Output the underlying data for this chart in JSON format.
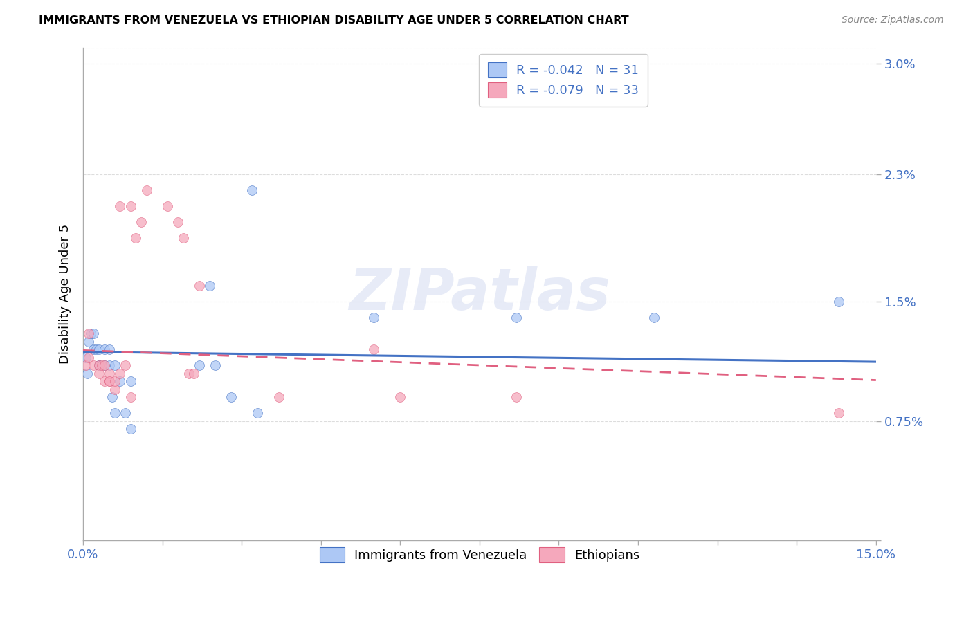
{
  "title": "IMMIGRANTS FROM VENEZUELA VS ETHIOPIAN DISABILITY AGE UNDER 5 CORRELATION CHART",
  "source": "Source: ZipAtlas.com",
  "ylabel": "Disability Age Under 5",
  "legend_label1": "Immigrants from Venezuela",
  "legend_label2": "Ethiopians",
  "R1": "-0.042",
  "N1": "31",
  "R2": "-0.079",
  "N2": "33",
  "color_venezuela": "#adc8f5",
  "color_ethiopia": "#f5a8bc",
  "color_line_venezuela": "#4472c4",
  "color_line_ethiopia": "#e06080",
  "xlim": [
    0.0,
    0.15
  ],
  "ylim": [
    0.0,
    0.031
  ],
  "ytick_vals": [
    0.0,
    0.0075,
    0.015,
    0.023,
    0.03
  ],
  "ytick_labels": [
    "",
    "0.75%",
    "1.5%",
    "2.3%",
    "3.0%"
  ],
  "venezuela_x": [
    0.0005,
    0.0008,
    0.001,
    0.0015,
    0.002,
    0.002,
    0.0025,
    0.003,
    0.003,
    0.003,
    0.004,
    0.004,
    0.005,
    0.005,
    0.0055,
    0.006,
    0.006,
    0.007,
    0.008,
    0.009,
    0.009,
    0.022,
    0.024,
    0.025,
    0.028,
    0.032,
    0.033,
    0.055,
    0.082,
    0.108,
    0.143
  ],
  "venezuela_y": [
    0.0115,
    0.0105,
    0.0125,
    0.013,
    0.012,
    0.013,
    0.012,
    0.011,
    0.011,
    0.012,
    0.011,
    0.012,
    0.011,
    0.012,
    0.009,
    0.011,
    0.008,
    0.01,
    0.008,
    0.01,
    0.007,
    0.011,
    0.016,
    0.011,
    0.009,
    0.022,
    0.008,
    0.014,
    0.014,
    0.014,
    0.015
  ],
  "ethiopia_x": [
    0.0005,
    0.001,
    0.001,
    0.002,
    0.003,
    0.003,
    0.0035,
    0.004,
    0.004,
    0.005,
    0.005,
    0.005,
    0.006,
    0.006,
    0.007,
    0.007,
    0.008,
    0.009,
    0.009,
    0.01,
    0.011,
    0.012,
    0.016,
    0.018,
    0.019,
    0.02,
    0.021,
    0.022,
    0.037,
    0.055,
    0.06,
    0.082,
    0.143
  ],
  "ethiopia_y": [
    0.011,
    0.0115,
    0.013,
    0.011,
    0.011,
    0.0105,
    0.011,
    0.01,
    0.011,
    0.01,
    0.0105,
    0.01,
    0.0095,
    0.01,
    0.021,
    0.0105,
    0.011,
    0.009,
    0.021,
    0.019,
    0.02,
    0.022,
    0.021,
    0.02,
    0.019,
    0.0105,
    0.0105,
    0.016,
    0.009,
    0.012,
    0.009,
    0.009,
    0.008
  ],
  "scatter_size": 100,
  "watermark": "ZIPatlas",
  "background_color": "#ffffff",
  "grid_color": "#dddddd",
  "line1_start_y": 0.01185,
  "line1_end_y": 0.01122,
  "line2_start_y": 0.01195,
  "line2_end_y": 0.01007
}
